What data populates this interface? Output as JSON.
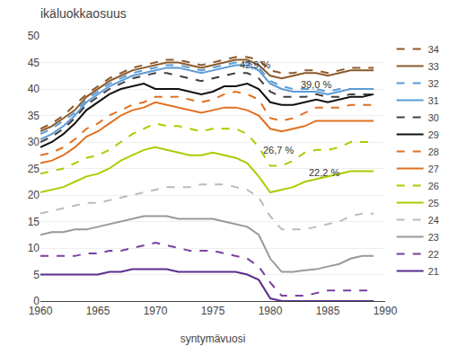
{
  "chart_data": {
    "type": "line",
    "title": "ikäluokkaosuus",
    "xlabel": "syntymävuosi",
    "xlim": [
      1960,
      1990
    ],
    "ylim": [
      0,
      50
    ],
    "xticks": [
      1960,
      1965,
      1970,
      1975,
      1980,
      1985,
      1990
    ],
    "yticks": [
      0,
      5,
      10,
      15,
      20,
      25,
      30,
      35,
      40,
      45,
      50
    ],
    "grid": "y",
    "legend": "right",
    "x": [
      1960,
      1961,
      1962,
      1963,
      1964,
      1965,
      1966,
      1967,
      1968,
      1969,
      1970,
      1971,
      1972,
      1973,
      1974,
      1975,
      1976,
      1977,
      1978,
      1979,
      1980,
      1981,
      1982,
      1983,
      1984,
      1985,
      1986,
      1987,
      1988,
      1989,
      1990
    ],
    "annotations": [
      {
        "text": "42,9 %",
        "x": 1977.2,
        "y": 43.2
      },
      {
        "text": "39,0 %",
        "x": 1982.5,
        "y": 39.5
      },
      {
        "text": "26,7 %",
        "x": 1979.2,
        "y": 27.2
      },
      {
        "text": "22,2 %",
        "x": 1983.2,
        "y": 22.8
      }
    ],
    "series": [
      {
        "name": "34",
        "color": "#8B5A2B",
        "line_style": "dashed",
        "values": [
          32.5,
          33.5,
          35.0,
          37.0,
          39.0,
          40.5,
          42.0,
          43.0,
          44.0,
          44.5,
          45.0,
          45.5,
          45.5,
          45.0,
          44.5,
          45.0,
          45.5,
          46.0,
          46.0,
          45.5,
          43.5,
          43.0,
          43.0,
          43.5,
          43.5,
          43.0,
          43.5,
          44.0,
          44.0,
          44.0,
          null
        ]
      },
      {
        "name": "33",
        "color": "#8B5A2B",
        "line_style": "solid",
        "values": [
          32.0,
          33.0,
          34.5,
          36.0,
          38.5,
          40.0,
          41.5,
          42.5,
          43.5,
          44.0,
          44.5,
          45.0,
          45.0,
          44.5,
          44.0,
          44.5,
          45.0,
          45.5,
          45.5,
          44.5,
          42.5,
          42.0,
          42.5,
          43.0,
          43.0,
          42.5,
          43.0,
          43.5,
          43.5,
          43.5,
          null
        ]
      },
      {
        "name": "32",
        "color": "#5B9BD5",
        "line_style": "dashed",
        "values": [
          31.5,
          32.5,
          34.0,
          35.5,
          38.0,
          39.5,
          41.0,
          42.0,
          43.0,
          43.5,
          44.0,
          44.5,
          44.5,
          44.0,
          43.5,
          44.0,
          44.5,
          45.0,
          45.0,
          44.0,
          41.5,
          40.5,
          40.0,
          40.0,
          40.0,
          39.5,
          40.0,
          40.0,
          40.0,
          40.0,
          null
        ]
      },
      {
        "name": "31",
        "color": "#5B9BD5",
        "line_style": "solid",
        "values": [
          30.5,
          31.5,
          33.0,
          35.0,
          37.5,
          39.0,
          40.5,
          41.5,
          42.5,
          43.0,
          43.5,
          44.0,
          44.0,
          43.5,
          43.0,
          43.5,
          44.0,
          44.5,
          44.5,
          43.5,
          41.0,
          40.0,
          39.5,
          39.5,
          39.5,
          39.0,
          39.5,
          40.0,
          40.0,
          40.0,
          null
        ]
      },
      {
        "name": "30",
        "color": "#404040",
        "line_style": "dashed",
        "values": [
          30.0,
          31.0,
          32.5,
          34.5,
          37.0,
          38.5,
          40.0,
          41.0,
          42.0,
          42.5,
          43.0,
          43.0,
          42.5,
          42.0,
          41.5,
          42.0,
          42.5,
          43.0,
          43.0,
          42.0,
          39.5,
          38.5,
          38.5,
          38.5,
          39.0,
          38.5,
          38.5,
          39.0,
          39.0,
          39.0,
          null
        ]
      },
      {
        "name": "29",
        "color": "#111111",
        "line_style": "solid",
        "values": [
          29.0,
          30.0,
          31.5,
          33.5,
          36.0,
          37.5,
          39.0,
          40.0,
          40.5,
          41.0,
          40.0,
          40.0,
          40.0,
          39.5,
          39.0,
          39.5,
          40.5,
          40.5,
          41.0,
          40.0,
          37.5,
          37.0,
          37.0,
          37.5,
          38.0,
          37.5,
          38.0,
          38.5,
          38.5,
          39.0,
          null
        ]
      },
      {
        "name": "28",
        "color": "#E07020",
        "line_style": "dashed",
        "values": [
          27.5,
          28.0,
          29.0,
          30.5,
          32.5,
          33.5,
          35.0,
          36.0,
          37.0,
          37.5,
          38.5,
          38.5,
          38.5,
          38.0,
          37.5,
          38.0,
          39.0,
          39.5,
          39.0,
          38.0,
          34.5,
          34.0,
          34.5,
          35.5,
          36.5,
          36.5,
          36.5,
          37.0,
          37.0,
          37.0,
          null
        ]
      },
      {
        "name": "27",
        "color": "#E07020",
        "line_style": "solid",
        "values": [
          26.0,
          26.5,
          27.5,
          29.0,
          31.0,
          32.0,
          33.5,
          35.0,
          36.0,
          36.5,
          37.5,
          37.0,
          36.5,
          36.0,
          35.5,
          36.0,
          36.5,
          36.5,
          36.0,
          35.0,
          32.5,
          32.0,
          32.5,
          33.0,
          34.0,
          34.0,
          34.0,
          34.0,
          34.0,
          34.0,
          null
        ]
      },
      {
        "name": "26",
        "color": "#AACC00",
        "line_style": "dashed",
        "values": [
          24.0,
          24.5,
          25.0,
          26.0,
          27.0,
          27.5,
          28.5,
          30.0,
          31.5,
          32.5,
          33.5,
          33.0,
          33.0,
          32.5,
          32.0,
          32.5,
          32.5,
          32.5,
          31.5,
          29.0,
          25.5,
          25.5,
          26.5,
          28.0,
          28.5,
          28.5,
          29.0,
          30.0,
          30.0,
          30.0,
          null
        ]
      },
      {
        "name": "25",
        "color": "#AACC00",
        "line_style": "solid",
        "values": [
          20.5,
          21.0,
          21.5,
          22.5,
          23.5,
          24.0,
          25.0,
          26.5,
          27.5,
          28.5,
          29.0,
          28.5,
          28.0,
          27.5,
          27.5,
          28.0,
          27.5,
          27.0,
          26.0,
          23.5,
          20.5,
          21.0,
          21.5,
          22.5,
          23.0,
          23.5,
          24.0,
          24.5,
          24.5,
          24.5,
          null
        ]
      },
      {
        "name": "24",
        "color": "#BBBBBB",
        "line_style": "dashed",
        "values": [
          16.5,
          17.0,
          17.5,
          18.0,
          18.5,
          18.5,
          19.0,
          19.5,
          20.0,
          20.5,
          21.0,
          21.5,
          21.5,
          21.5,
          22.0,
          22.0,
          22.0,
          21.5,
          21.0,
          19.5,
          16.0,
          13.5,
          13.5,
          13.5,
          14.0,
          14.5,
          15.0,
          16.0,
          16.5,
          16.5,
          null
        ]
      },
      {
        "name": "23",
        "color": "#999999",
        "line_style": "solid",
        "values": [
          12.5,
          13.0,
          13.0,
          13.5,
          13.5,
          14.0,
          14.5,
          15.0,
          15.5,
          16.0,
          16.0,
          16.0,
          15.5,
          15.5,
          15.5,
          15.5,
          15.0,
          14.5,
          14.0,
          12.5,
          8.0,
          5.5,
          5.5,
          5.8,
          6.0,
          6.5,
          7.0,
          8.0,
          8.5,
          8.5,
          null
        ]
      },
      {
        "name": "22",
        "color": "#7B3FA0",
        "line_style": "dashed",
        "values": [
          8.5,
          8.5,
          8.5,
          8.5,
          9.0,
          9.0,
          9.5,
          9.5,
          10.0,
          10.5,
          11.0,
          10.5,
          10.0,
          9.5,
          9.5,
          9.5,
          9.0,
          8.5,
          8.0,
          6.5,
          3.5,
          1.0,
          1.0,
          1.0,
          1.5,
          2.0,
          2.0,
          2.0,
          2.0,
          2.0,
          null
        ]
      },
      {
        "name": "21",
        "color": "#5B2D8E",
        "line_style": "solid",
        "values": [
          5.0,
          5.0,
          5.0,
          5.0,
          5.0,
          5.0,
          5.5,
          5.5,
          6.0,
          6.0,
          6.0,
          6.0,
          5.5,
          5.5,
          5.5,
          5.5,
          5.5,
          5.5,
          5.0,
          4.0,
          0.5,
          0.0,
          0.0,
          0.0,
          0.0,
          0.0,
          0.0,
          0.0,
          0.0,
          0.0,
          null
        ]
      }
    ]
  }
}
